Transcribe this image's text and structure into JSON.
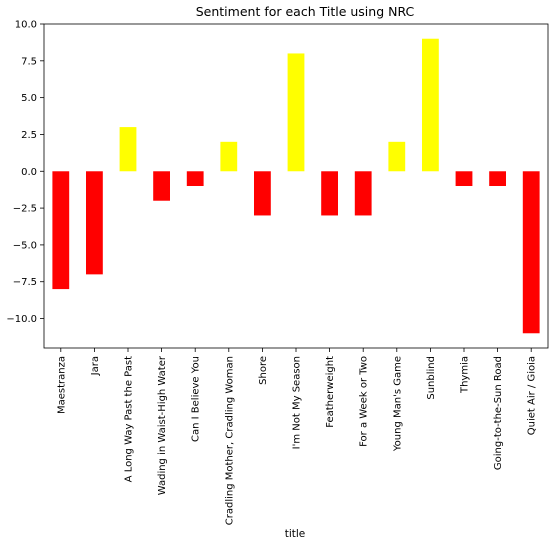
{
  "chart_data": {
    "type": "bar",
    "title": "Sentiment for each Title using NRC",
    "xlabel": "title",
    "ylabel": "",
    "ylim": [
      -12,
      10
    ],
    "yticks": [
      10.0,
      7.5,
      5.0,
      2.5,
      0.0,
      -2.5,
      -5.0,
      -7.5,
      -10.0
    ],
    "ytick_labels": [
      "10.0",
      "7.5",
      "5.0",
      "2.5",
      "0.0",
      "−2.5",
      "−5.0",
      "−7.5",
      "−10.0"
    ],
    "categories": [
      "Maestranza",
      "Jara",
      "A Long Way Past the Past",
      "Wading in Waist-High Water",
      "Can I Believe You",
      "Cradling Mother, Cradling Woman",
      "Shore",
      "I'm Not My Season",
      "Featherweight",
      "For a Week or Two",
      "Young Man's Game",
      "Sunblind",
      "Thymia",
      "Going-to-the-Sun Road",
      "Quiet Air / Gioia"
    ],
    "values": [
      -8,
      -7,
      3,
      -2,
      -1,
      2,
      -3,
      8,
      -3,
      -3,
      2,
      9,
      -1,
      -1,
      -11
    ],
    "colors": {
      "positive": "#ffff00",
      "negative": "#ff0000"
    },
    "grid": false,
    "legend": "none"
  }
}
